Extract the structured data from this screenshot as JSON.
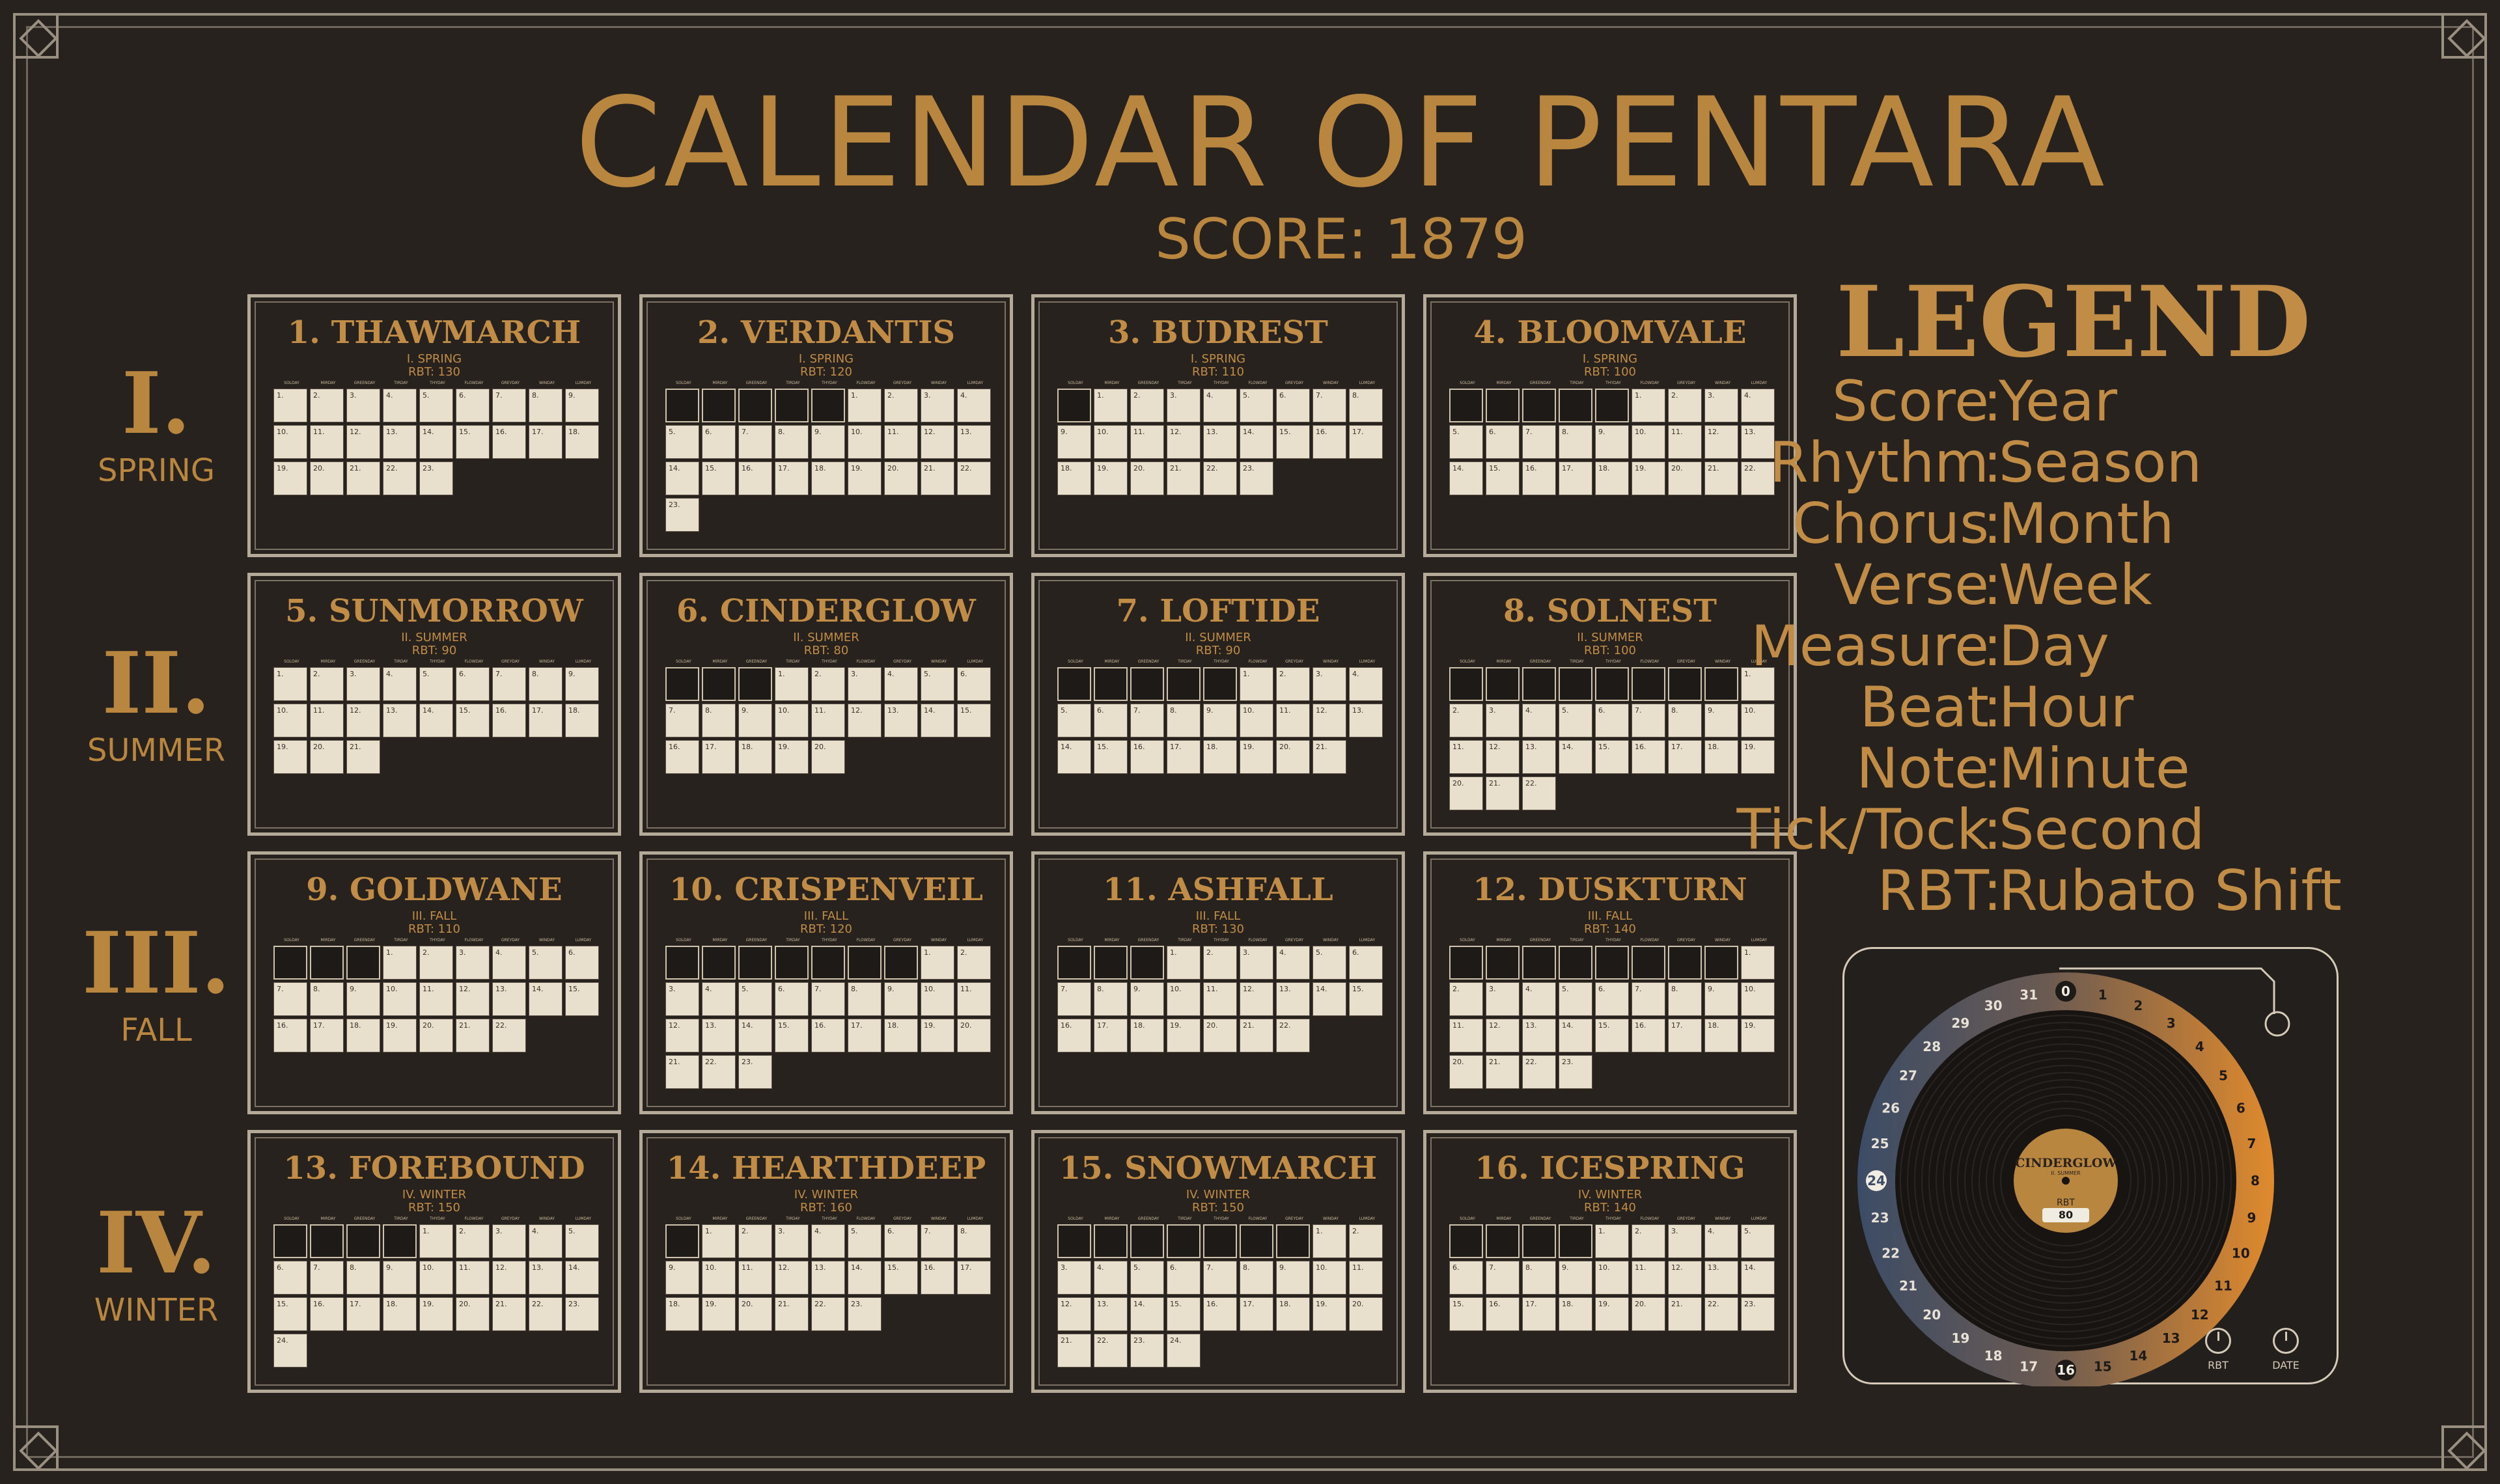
{
  "header": {
    "title": "CALENDAR OF PENTARA",
    "subtitle": "SCORE: 1879"
  },
  "weekdays": [
    "SOLDAY",
    "MIRDAY",
    "GREENDAY",
    "TIRDAY",
    "THYDAY",
    "FLOWDAY",
    "GREYDAY",
    "WINDAY",
    "LUMDAY"
  ],
  "seasons": [
    {
      "num": "I.",
      "name": "SPRING"
    },
    {
      "num": "II.",
      "name": "SUMMER"
    },
    {
      "num": "III.",
      "name": "FALL"
    },
    {
      "num": "IV.",
      "name": "WINTER"
    }
  ],
  "months": [
    {
      "title": "1. THAWMARCH",
      "season": "I. SPRING",
      "rbt": "RBT: 130",
      "offset": 0,
      "days": 23
    },
    {
      "title": "2. VERDANTIS",
      "season": "I. SPRING",
      "rbt": "RBT: 120",
      "offset": 5,
      "days": 23
    },
    {
      "title": "3. BUDREST",
      "season": "I. SPRING",
      "rbt": "RBT: 110",
      "offset": 1,
      "days": 23
    },
    {
      "title": "4. BLOOMVALE",
      "season": "I. SPRING",
      "rbt": "RBT: 100",
      "offset": 5,
      "days": 22
    },
    {
      "title": "5. SUNMORROW",
      "season": "II. SUMMER",
      "rbt": "RBT: 90",
      "offset": 0,
      "days": 21
    },
    {
      "title": "6. CINDERGLOW",
      "season": "II. SUMMER",
      "rbt": "RBT: 80",
      "offset": 3,
      "days": 20
    },
    {
      "title": "7. LOFTIDE",
      "season": "II. SUMMER",
      "rbt": "RBT: 90",
      "offset": 5,
      "days": 21
    },
    {
      "title": "8. SOLNEST",
      "season": "II. SUMMER",
      "rbt": "RBT: 100",
      "offset": 8,
      "days": 22
    },
    {
      "title": "9. GOLDWANE",
      "season": "III. FALL",
      "rbt": "RBT: 110",
      "offset": 3,
      "days": 22
    },
    {
      "title": "10. CRISPENVEIL",
      "season": "III. FALL",
      "rbt": "RBT: 120",
      "offset": 7,
      "days": 23
    },
    {
      "title": "11. ASHFALL",
      "season": "III. FALL",
      "rbt": "RBT: 130",
      "offset": 3,
      "days": 22
    },
    {
      "title": "12. DUSKTURN",
      "season": "III. FALL",
      "rbt": "RBT: 140",
      "offset": 8,
      "days": 23
    },
    {
      "title": "13. FOREBOUND",
      "season": "IV. WINTER",
      "rbt": "RBT: 150",
      "offset": 4,
      "days": 24
    },
    {
      "title": "14. HEARTHDEEP",
      "season": "IV. WINTER",
      "rbt": "RBT: 160",
      "offset": 1,
      "days": 23
    },
    {
      "title": "15. SNOWMARCH",
      "season": "IV. WINTER",
      "rbt": "RBT: 150",
      "offset": 7,
      "days": 24
    },
    {
      "title": "16. ICESPRING",
      "season": "IV. WINTER",
      "rbt": "RBT: 140",
      "offset": 4,
      "days": 23
    }
  ],
  "legend": {
    "title": "LEGEND",
    "rows": [
      {
        "k": "Score",
        "v": "Year"
      },
      {
        "k": "Rhythm",
        "v": "Season"
      },
      {
        "k": "Chorus",
        "v": "Month"
      },
      {
        "k": "Verse",
        "v": "Week"
      },
      {
        "k": "Measure",
        "v": "Day"
      },
      {
        "k": "Beat",
        "v": "Hour"
      },
      {
        "k": "Note",
        "v": "Minute"
      },
      {
        "k": "Tick/Tock",
        "v": "Second"
      },
      {
        "k": "RBT",
        "v": "Rubato Shift"
      }
    ]
  },
  "player": {
    "label_title": "CINDERGLOW",
    "label_sub": "II. SUMMER",
    "rbt_label": "RBT",
    "rbt_value": "80",
    "dial_numbers": [
      "0",
      "1",
      "2",
      "3",
      "4",
      "5",
      "6",
      "7",
      "8",
      "9",
      "10",
      "11",
      "12",
      "13",
      "14",
      "15",
      "16",
      "17",
      "18",
      "19",
      "20",
      "21",
      "22",
      "23",
      "24",
      "25",
      "26",
      "27",
      "28",
      "29",
      "30",
      "31"
    ],
    "highlight_a": "16",
    "highlight_b": "24",
    "knob1": "RBT",
    "knob2": "DATE",
    "colors": {
      "warm": "#e08a2c",
      "cool": "#3c4c66",
      "label": "#b8863f"
    }
  }
}
